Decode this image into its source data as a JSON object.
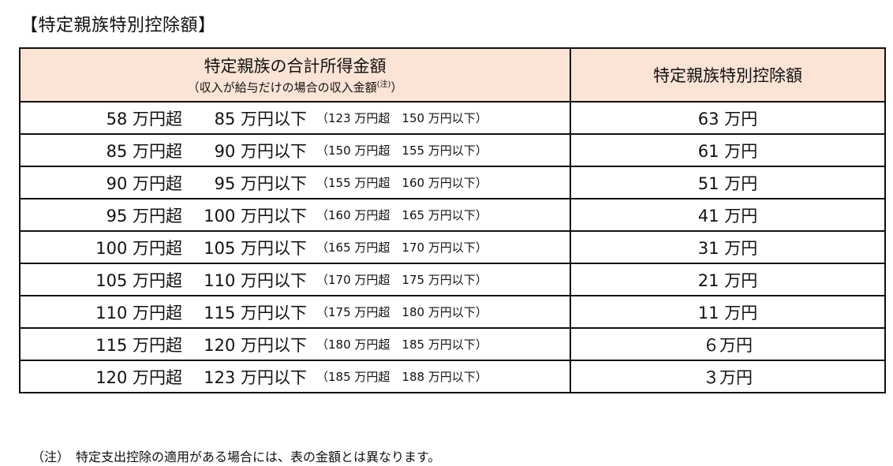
{
  "title": "【特定親族特別控除額】",
  "table": {
    "header_left_main": "特定親族の合計所得金額",
    "header_left_sub": "（収入が給与だけの場合の収入金額",
    "header_left_sub_note": "(注)",
    "header_left_sub_close": "）",
    "header_right": "特定親族特別控除額",
    "rows": [
      {
        "over": "58 万円超",
        "upto": "85 万円以下",
        "salary": "（123 万円超　150 万円以下）",
        "deduction": "63 万円"
      },
      {
        "over": "85 万円超",
        "upto": "90 万円以下",
        "salary": "（150 万円超　155 万円以下）",
        "deduction": "61 万円"
      },
      {
        "over": "90 万円超",
        "upto": "95 万円以下",
        "salary": "（155 万円超　160 万円以下）",
        "deduction": "51 万円"
      },
      {
        "over": "95 万円超",
        "upto": "100 万円以下",
        "salary": "（160 万円超　165 万円以下）",
        "deduction": "41 万円"
      },
      {
        "over": "100 万円超",
        "upto": "105 万円以下",
        "salary": "（165 万円超　170 万円以下）",
        "deduction": "31 万円"
      },
      {
        "over": "105 万円超",
        "upto": "110 万円以下",
        "salary": "（170 万円超　175 万円以下）",
        "deduction": "21 万円"
      },
      {
        "over": "110 万円超",
        "upto": "115 万円以下",
        "salary": "（175 万円超　180 万円以下）",
        "deduction": "11 万円"
      },
      {
        "over": "115 万円超",
        "upto": "120 万円以下",
        "salary": "（180 万円超　185 万円以下）",
        "deduction": "６万円"
      },
      {
        "over": "120 万円超",
        "upto": "123 万円以下",
        "salary": "（185 万円超　188 万円以下）",
        "deduction": "３万円"
      }
    ]
  },
  "footnote": "（注）　特定支出控除の適用がある場合には、表の金額とは異なります。",
  "colors": {
    "header_bg": "#fbe4d5",
    "border": "#111111"
  }
}
